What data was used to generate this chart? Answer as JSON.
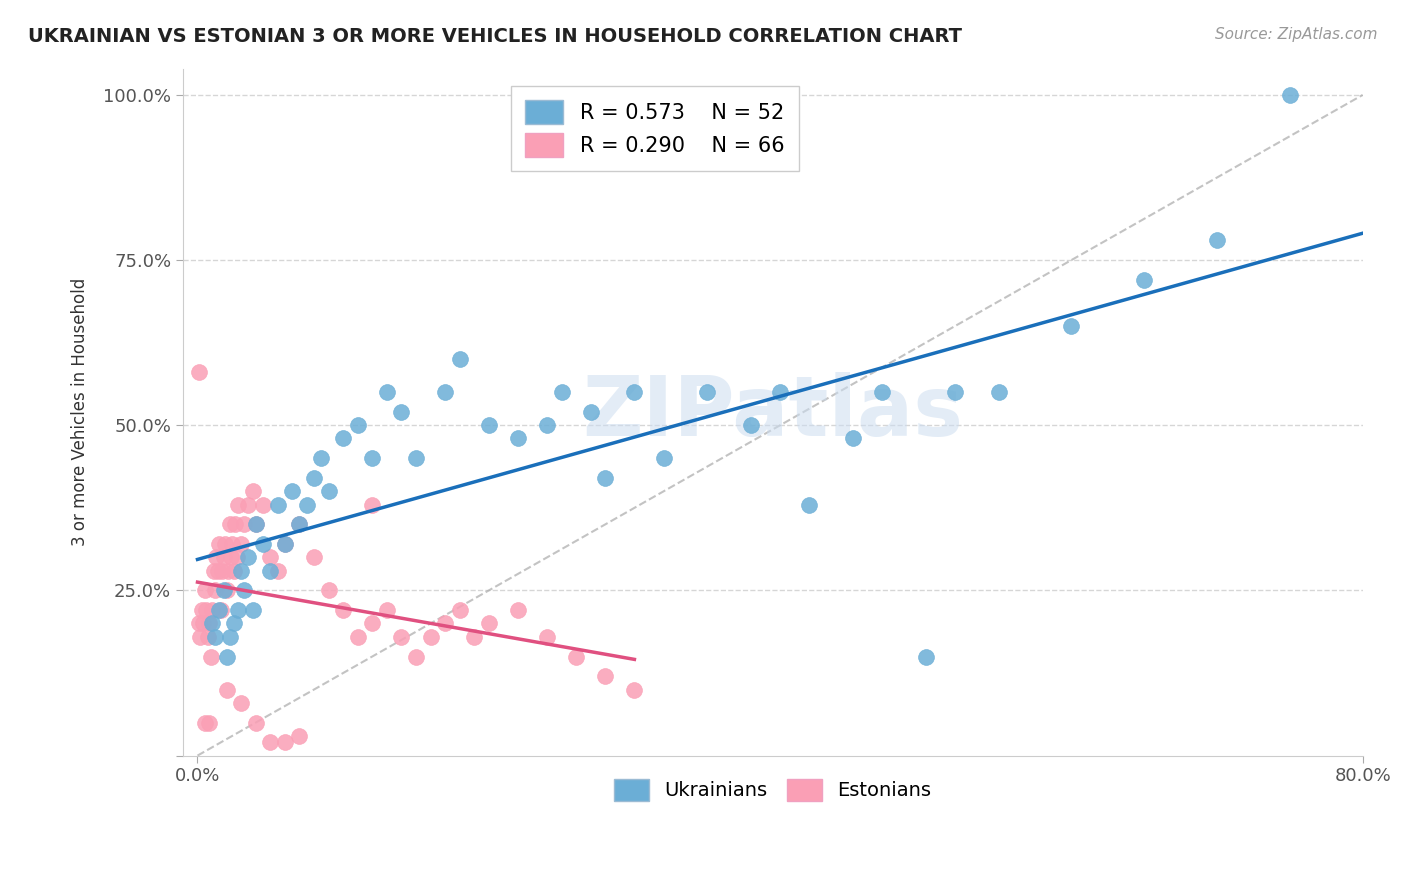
{
  "title": "UKRAINIAN VS ESTONIAN 3 OR MORE VEHICLES IN HOUSEHOLD CORRELATION CHART",
  "source": "Source: ZipAtlas.com",
  "ylabel": "3 or more Vehicles in Household",
  "xlim": [
    0.0,
    80.0
  ],
  "ylim": [
    0.0,
    100.0
  ],
  "xticklabels": [
    "0.0%",
    "80.0%"
  ],
  "yticklabels": [
    "",
    "25.0%",
    "50.0%",
    "75.0%",
    "100.0%"
  ],
  "legend_R_blue": "R = 0.573",
  "legend_N_blue": "N = 52",
  "legend_R_pink": "R = 0.290",
  "legend_N_pink": "N = 66",
  "watermark": "ZIPatlas",
  "blue_color": "#6baed6",
  "pink_color": "#fa9fb5",
  "blue_line_color": "#1a6fba",
  "pink_line_color": "#e05080",
  "grid_color": "#cccccc",
  "background_color": "#ffffff",
  "ukrainians_x": [
    1.0,
    1.2,
    1.5,
    1.8,
    2.0,
    2.2,
    2.5,
    2.8,
    3.0,
    3.2,
    3.5,
    3.8,
    4.0,
    4.5,
    5.0,
    5.5,
    6.0,
    6.5,
    7.0,
    7.5,
    8.0,
    8.5,
    9.0,
    10.0,
    11.0,
    12.0,
    13.0,
    14.0,
    15.0,
    17.0,
    18.0,
    20.0,
    22.0,
    24.0,
    25.0,
    27.0,
    28.0,
    30.0,
    32.0,
    35.0,
    38.0,
    40.0,
    42.0,
    45.0,
    47.0,
    50.0,
    52.0,
    55.0,
    60.0,
    65.0,
    70.0,
    75.0
  ],
  "ukrainians_y": [
    20.0,
    18.0,
    22.0,
    25.0,
    15.0,
    18.0,
    20.0,
    22.0,
    28.0,
    25.0,
    30.0,
    22.0,
    35.0,
    32.0,
    28.0,
    38.0,
    32.0,
    40.0,
    35.0,
    38.0,
    42.0,
    45.0,
    40.0,
    48.0,
    50.0,
    45.0,
    55.0,
    52.0,
    45.0,
    55.0,
    60.0,
    50.0,
    48.0,
    50.0,
    55.0,
    52.0,
    42.0,
    55.0,
    45.0,
    55.0,
    50.0,
    55.0,
    38.0,
    48.0,
    55.0,
    15.0,
    55.0,
    55.0,
    65.0,
    72.0,
    78.0,
    100.0
  ],
  "estonians_x": [
    0.1,
    0.2,
    0.3,
    0.4,
    0.5,
    0.6,
    0.7,
    0.8,
    0.9,
    1.0,
    1.1,
    1.2,
    1.3,
    1.4,
    1.5,
    1.6,
    1.7,
    1.8,
    1.9,
    2.0,
    2.1,
    2.2,
    2.3,
    2.4,
    2.5,
    2.6,
    2.7,
    2.8,
    3.0,
    3.2,
    3.5,
    3.8,
    4.0,
    4.5,
    5.0,
    5.5,
    6.0,
    7.0,
    8.0,
    9.0,
    10.0,
    11.0,
    12.0,
    13.0,
    14.0,
    15.0,
    16.0,
    17.0,
    18.0,
    19.0,
    20.0,
    22.0,
    24.0,
    26.0,
    28.0,
    30.0,
    0.1,
    0.8,
    2.0,
    3.0,
    4.0,
    5.0,
    6.0,
    7.0,
    0.5,
    12.0
  ],
  "estonians_y": [
    20.0,
    18.0,
    22.0,
    20.0,
    25.0,
    22.0,
    18.0,
    20.0,
    15.0,
    22.0,
    28.0,
    25.0,
    30.0,
    28.0,
    32.0,
    22.0,
    28.0,
    30.0,
    32.0,
    25.0,
    28.0,
    35.0,
    30.0,
    32.0,
    28.0,
    35.0,
    30.0,
    38.0,
    32.0,
    35.0,
    38.0,
    40.0,
    35.0,
    38.0,
    30.0,
    28.0,
    32.0,
    35.0,
    30.0,
    25.0,
    22.0,
    18.0,
    20.0,
    22.0,
    18.0,
    15.0,
    18.0,
    20.0,
    22.0,
    18.0,
    20.0,
    22.0,
    18.0,
    15.0,
    12.0,
    10.0,
    58.0,
    5.0,
    10.0,
    8.0,
    5.0,
    2.0,
    2.0,
    3.0,
    5.0,
    38.0
  ]
}
